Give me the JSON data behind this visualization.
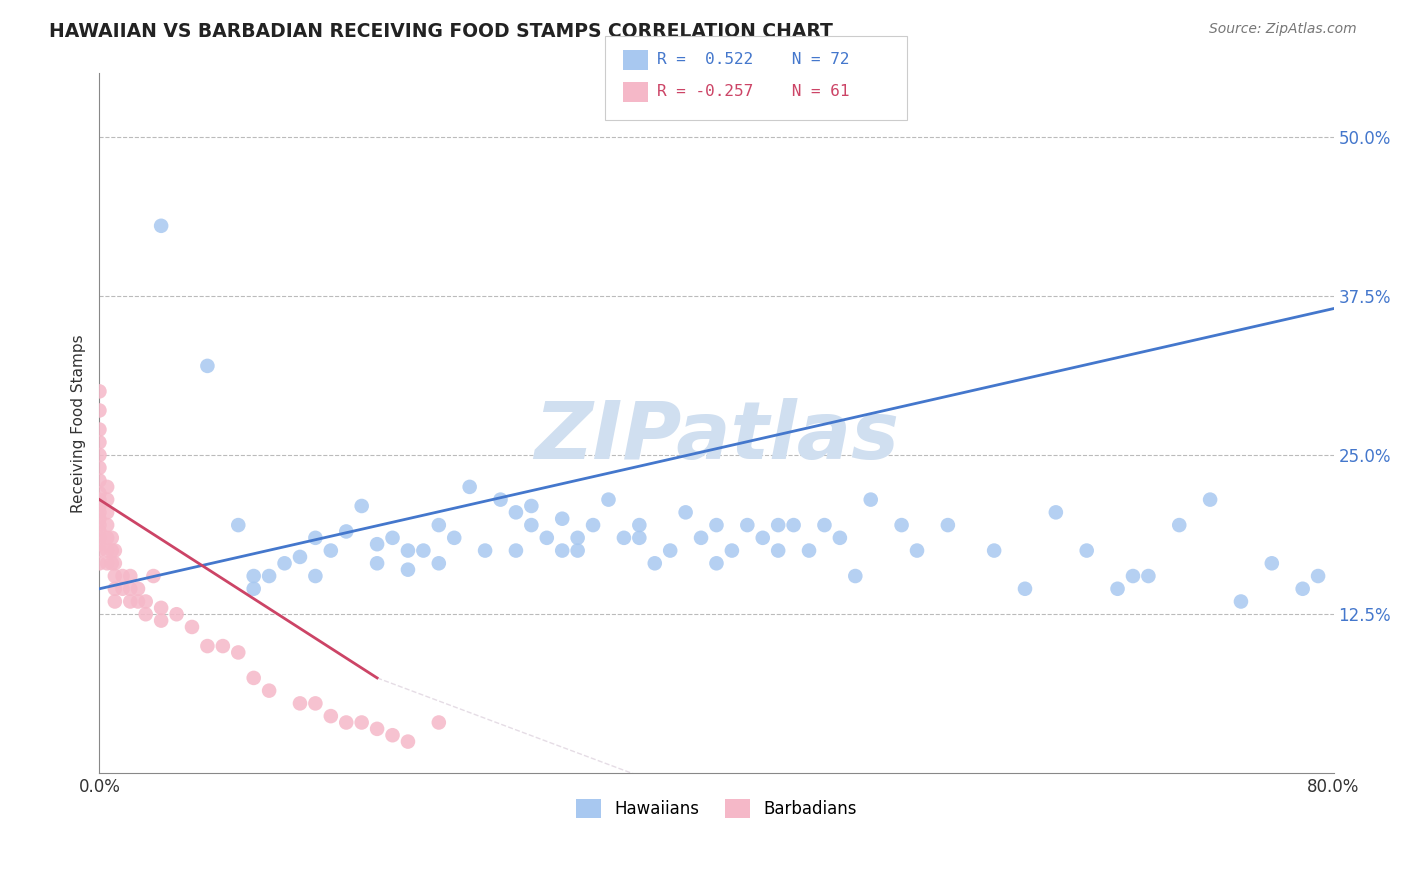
{
  "title": "HAWAIIAN VS BARBADIAN RECEIVING FOOD STAMPS CORRELATION CHART",
  "source_text": "Source: ZipAtlas.com",
  "ylabel": "Receiving Food Stamps",
  "xlim": [
    0.0,
    0.8
  ],
  "ylim": [
    0.0,
    0.55
  ],
  "x_tick_labels": [
    "0.0%",
    "80.0%"
  ],
  "y_ticks": [
    0.125,
    0.25,
    0.375,
    0.5
  ],
  "y_tick_labels": [
    "12.5%",
    "25.0%",
    "37.5%",
    "50.0%"
  ],
  "hawaiian_color": "#a8c8f0",
  "barbadian_color": "#f5b8c8",
  "hawaiian_trend_color": "#4477cc",
  "barbadian_trend_color": "#cc4466",
  "barbadian_trend_dashed_color": "#ccbbcc",
  "watermark_text": "ZIPatlas",
  "watermark_color": "#d0dff0",
  "background_color": "#ffffff",
  "haw_x": [
    0.04,
    0.07,
    0.09,
    0.1,
    0.1,
    0.11,
    0.12,
    0.13,
    0.14,
    0.14,
    0.15,
    0.16,
    0.17,
    0.18,
    0.18,
    0.19,
    0.2,
    0.2,
    0.21,
    0.22,
    0.22,
    0.23,
    0.24,
    0.25,
    0.26,
    0.27,
    0.27,
    0.28,
    0.28,
    0.29,
    0.3,
    0.3,
    0.31,
    0.31,
    0.32,
    0.33,
    0.34,
    0.35,
    0.35,
    0.36,
    0.37,
    0.38,
    0.39,
    0.4,
    0.4,
    0.41,
    0.42,
    0.43,
    0.44,
    0.44,
    0.45,
    0.46,
    0.47,
    0.48,
    0.49,
    0.5,
    0.52,
    0.53,
    0.55,
    0.58,
    0.6,
    0.62,
    0.64,
    0.66,
    0.67,
    0.68,
    0.7,
    0.72,
    0.74,
    0.76,
    0.78,
    0.79
  ],
  "haw_y": [
    0.43,
    0.32,
    0.195,
    0.155,
    0.145,
    0.155,
    0.165,
    0.17,
    0.155,
    0.185,
    0.175,
    0.19,
    0.21,
    0.18,
    0.165,
    0.185,
    0.175,
    0.16,
    0.175,
    0.165,
    0.195,
    0.185,
    0.225,
    0.175,
    0.215,
    0.205,
    0.175,
    0.21,
    0.195,
    0.185,
    0.2,
    0.175,
    0.185,
    0.175,
    0.195,
    0.215,
    0.185,
    0.195,
    0.185,
    0.165,
    0.175,
    0.205,
    0.185,
    0.195,
    0.165,
    0.175,
    0.195,
    0.185,
    0.195,
    0.175,
    0.195,
    0.175,
    0.195,
    0.185,
    0.155,
    0.215,
    0.195,
    0.175,
    0.195,
    0.175,
    0.145,
    0.205,
    0.175,
    0.145,
    0.155,
    0.155,
    0.195,
    0.215,
    0.135,
    0.165,
    0.145,
    0.155
  ],
  "bar_x": [
    0.0,
    0.0,
    0.0,
    0.0,
    0.0,
    0.0,
    0.0,
    0.0,
    0.0,
    0.0,
    0.0,
    0.0,
    0.0,
    0.0,
    0.0,
    0.0,
    0.0,
    0.0,
    0.005,
    0.005,
    0.005,
    0.005,
    0.005,
    0.005,
    0.005,
    0.008,
    0.008,
    0.008,
    0.01,
    0.01,
    0.01,
    0.01,
    0.01,
    0.015,
    0.015,
    0.02,
    0.02,
    0.02,
    0.025,
    0.025,
    0.03,
    0.03,
    0.035,
    0.04,
    0.04,
    0.05,
    0.06,
    0.07,
    0.08,
    0.09,
    0.1,
    0.11,
    0.13,
    0.14,
    0.15,
    0.16,
    0.17,
    0.18,
    0.19,
    0.2,
    0.22
  ],
  "bar_y": [
    0.3,
    0.285,
    0.27,
    0.26,
    0.25,
    0.24,
    0.23,
    0.22,
    0.215,
    0.21,
    0.205,
    0.2,
    0.195,
    0.19,
    0.185,
    0.18,
    0.175,
    0.165,
    0.225,
    0.215,
    0.205,
    0.195,
    0.185,
    0.175,
    0.165,
    0.185,
    0.175,
    0.165,
    0.175,
    0.165,
    0.155,
    0.145,
    0.135,
    0.155,
    0.145,
    0.155,
    0.145,
    0.135,
    0.145,
    0.135,
    0.135,
    0.125,
    0.155,
    0.13,
    0.12,
    0.125,
    0.115,
    0.1,
    0.1,
    0.095,
    0.075,
    0.065,
    0.055,
    0.055,
    0.045,
    0.04,
    0.04,
    0.035,
    0.03,
    0.025,
    0.04
  ]
}
